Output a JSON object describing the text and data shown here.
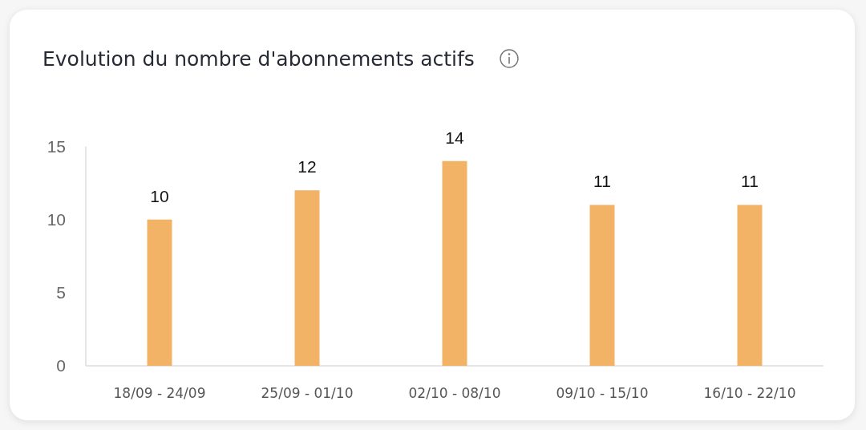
{
  "chart_data": {
    "type": "bar",
    "title": "Evolution du nombre d'abonnements actifs",
    "categories": [
      "18/09 - 24/09",
      "25/09 - 01/10",
      "02/10 - 08/10",
      "09/10 - 15/10",
      "16/10 - 22/10"
    ],
    "values": [
      10,
      12,
      14,
      11,
      11
    ],
    "color": "#f2b366",
    "ylim": [
      0,
      15
    ],
    "yticks": [
      0,
      5,
      10,
      15
    ],
    "data_labels": true
  }
}
